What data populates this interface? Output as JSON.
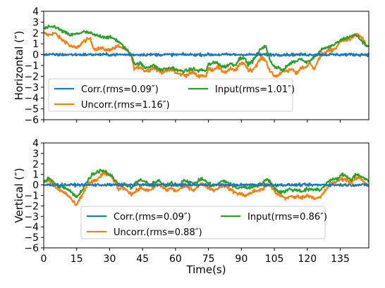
{
  "colors": {
    "corr": "#1f77b4",
    "uncorr": "#ff7f0e",
    "input": "#2ca02c"
  },
  "chart_data": [
    {
      "type": "line",
      "ylabel": "Horizontal (″)",
      "xlabel": "",
      "xlim": [
        0,
        148
      ],
      "ylim": [
        -6,
        4
      ],
      "yticks": [
        "4",
        "3",
        "2",
        "1",
        "0",
        "−1",
        "−2",
        "−3",
        "−4",
        "−5",
        "−6"
      ],
      "ytick_values": [
        4,
        3,
        2,
        1,
        0,
        -1,
        -2,
        -3,
        -4,
        -5,
        -6
      ],
      "xtick_values": [
        0,
        15,
        30,
        45,
        60,
        75,
        90,
        105,
        120,
        135
      ],
      "show_xtick_labels": false,
      "legend": {
        "placement": "lower-left",
        "entries": [
          "Corr.(rms=0.09″)",
          "Uncorr.(rms=1.16″)",
          "Input(rms=1.01″)"
        ]
      },
      "series": [
        {
          "name": "Corr.(rms=0.09″)",
          "key": "corr",
          "noise": 0.09,
          "x": [
            0,
            148
          ],
          "values": [
            0,
            0
          ]
        },
        {
          "name": "Uncorr.(rms=1.16″)",
          "key": "uncorr",
          "noise": 0.12,
          "x": [
            0,
            2,
            5,
            8,
            10,
            12,
            15,
            18,
            21,
            23,
            26,
            29,
            32,
            34,
            36,
            38,
            40,
            41,
            42,
            44,
            46,
            48,
            50,
            53,
            56,
            59,
            60,
            62,
            65,
            68,
            70,
            72,
            74,
            75,
            77,
            79,
            81,
            83,
            85,
            87,
            89,
            91,
            93,
            95,
            97,
            99,
            101,
            103,
            105,
            107,
            109,
            111,
            113,
            115,
            117,
            119,
            121,
            123,
            125,
            127,
            129,
            131,
            133,
            135,
            137,
            139,
            141,
            143,
            145,
            147
          ],
          "values": [
            2.0,
            1.8,
            2.0,
            1.4,
            1.2,
            0.8,
            0.6,
            1.2,
            1.5,
            0.5,
            0.6,
            0.4,
            0.6,
            0.8,
            0.6,
            0.3,
            -0.2,
            -1.2,
            -1.3,
            -1.1,
            -1.5,
            -1.4,
            -1.2,
            -1.6,
            -1.5,
            -1.4,
            -1.7,
            -1.8,
            -1.9,
            -1.6,
            -2.0,
            -1.9,
            -2.0,
            -1.3,
            -1.4,
            -1.1,
            -1.5,
            -1.6,
            -1.3,
            -1.5,
            -1.0,
            -0.7,
            -1.4,
            -1.4,
            -0.9,
            -0.3,
            -0.5,
            -1.5,
            -2.0,
            -1.9,
            -1.4,
            -1.6,
            -1.3,
            -1.8,
            -1.2,
            -1.2,
            -0.8,
            -1.3,
            -0.5,
            0.1,
            0.3,
            0.4,
            0.6,
            1.2,
            1.3,
            1.4,
            1.7,
            1.9,
            1.5,
            0.8
          ]
        },
        {
          "name": "Input(rms=1.01″)",
          "key": "input",
          "noise": 0.11,
          "x": [
            0,
            2,
            5,
            8,
            10,
            12,
            15,
            18,
            21,
            23,
            26,
            29,
            32,
            34,
            36,
            38,
            40,
            41,
            42,
            44,
            46,
            48,
            50,
            53,
            56,
            59,
            60,
            62,
            65,
            68,
            70,
            72,
            74,
            75,
            77,
            79,
            81,
            83,
            85,
            87,
            89,
            91,
            93,
            95,
            97,
            99,
            101,
            103,
            105,
            107,
            109,
            111,
            113,
            115,
            117,
            119,
            121,
            123,
            125,
            127,
            129,
            131,
            133,
            135,
            137,
            139,
            141,
            143,
            145,
            147
          ],
          "values": [
            2.4,
            2.5,
            2.6,
            2.2,
            2.0,
            1.8,
            1.9,
            2.1,
            2.0,
            1.8,
            1.7,
            1.6,
            1.5,
            1.2,
            0.8,
            0.4,
            0.0,
            -0.7,
            -0.9,
            -0.8,
            -1.2,
            -1.1,
            -1.0,
            -1.4,
            -1.3,
            -1.2,
            -1.4,
            -1.5,
            -1.5,
            -1.3,
            -1.5,
            -1.4,
            -1.5,
            -0.9,
            -0.8,
            -0.7,
            -1.1,
            -1.1,
            -0.8,
            -1.0,
            -0.4,
            -0.2,
            -0.9,
            -0.6,
            -0.1,
            0.6,
            0.8,
            -0.5,
            -1.1,
            -1.2,
            -1.5,
            -1.0,
            -0.7,
            -0.6,
            -0.3,
            -0.7,
            -0.6,
            -0.2,
            0.1,
            0.6,
            0.6,
            0.8,
            1.0,
            1.3,
            1.5,
            1.6,
            1.8,
            1.7,
            1.2,
            0.8
          ]
        }
      ]
    },
    {
      "type": "line",
      "ylabel": "Vertical (″)",
      "xlabel": "Time(s)",
      "xlim": [
        0,
        148
      ],
      "ylim": [
        -6,
        4
      ],
      "yticks": [
        "4",
        "3",
        "2",
        "1",
        "0",
        "−1",
        "−2",
        "−3",
        "−4",
        "−5",
        "−6"
      ],
      "ytick_values": [
        4,
        3,
        2,
        1,
        0,
        -1,
        -2,
        -3,
        -4,
        -5,
        -6
      ],
      "xticks": [
        "0",
        "15",
        "30",
        "45",
        "60",
        "75",
        "90",
        "105",
        "120",
        "135"
      ],
      "xtick_values": [
        0,
        15,
        30,
        45,
        60,
        75,
        90,
        105,
        120,
        135
      ],
      "show_xtick_labels": true,
      "legend": {
        "placement": "lower-center",
        "entries": [
          "Corr.(rms=0.09″)",
          "Uncorr.(rms=0.88″)",
          "Input(rms=0.86″)"
        ]
      },
      "series": [
        {
          "name": "Corr.(rms=0.09″)",
          "key": "corr",
          "noise": 0.09,
          "x": [
            0,
            148
          ],
          "values": [
            0,
            0
          ]
        },
        {
          "name": "Uncorr.(rms=0.88″)",
          "key": "uncorr",
          "noise": 0.13,
          "x": [
            0,
            2,
            4,
            6,
            8,
            10,
            12,
            14,
            15,
            16,
            18,
            20,
            22,
            24,
            26,
            28,
            30,
            32,
            34,
            36,
            38,
            40,
            42,
            44,
            46,
            48,
            50,
            52,
            54,
            56,
            58,
            60,
            62,
            64,
            66,
            68,
            70,
            72,
            74,
            76,
            78,
            80,
            82,
            84,
            86,
            88,
            90,
            92,
            94,
            96,
            98,
            100,
            102,
            104,
            106,
            108,
            110,
            112,
            114,
            116,
            118,
            120,
            122,
            124,
            126,
            128,
            130,
            132,
            134,
            136,
            138,
            140,
            142,
            144,
            146,
            148
          ],
          "values": [
            0.3,
            0.4,
            0.1,
            -0.4,
            -0.6,
            -0.8,
            -1.2,
            -1.8,
            -2.0,
            -1.5,
            -0.8,
            0.1,
            0.3,
            0.4,
            0.9,
            1.1,
            0.9,
            0.4,
            -0.4,
            -0.2,
            -0.5,
            -0.9,
            -0.6,
            -0.3,
            -0.4,
            -0.6,
            -0.3,
            0.1,
            -0.2,
            -0.5,
            -0.3,
            -0.6,
            -0.4,
            -0.1,
            -0.2,
            -0.5,
            -0.2,
            0.1,
            -0.1,
            -0.4,
            -0.5,
            -0.2,
            0.0,
            -0.3,
            -0.6,
            -0.8,
            -0.9,
            -1.0,
            -0.8,
            -0.6,
            -0.5,
            -0.4,
            0.2,
            -0.3,
            -0.9,
            -1.0,
            -1.3,
            -1.1,
            -1.2,
            -1.1,
            -1.2,
            -1.0,
            -1.1,
            -1.3,
            -1.2,
            -0.6,
            0.0,
            0.2,
            0.4,
            0.6,
            0.5,
            0.2,
            0.6,
            0.7,
            0.3,
            -0.1
          ]
        },
        {
          "name": "Input(rms=0.86″)",
          "key": "input",
          "noise": 0.12,
          "x": [
            0,
            2,
            4,
            6,
            8,
            10,
            12,
            14,
            15,
            16,
            18,
            20,
            22,
            24,
            26,
            28,
            30,
            32,
            34,
            36,
            38,
            40,
            42,
            44,
            46,
            48,
            50,
            52,
            54,
            56,
            58,
            60,
            62,
            64,
            66,
            68,
            70,
            72,
            74,
            76,
            78,
            80,
            82,
            84,
            86,
            88,
            90,
            92,
            94,
            96,
            98,
            100,
            102,
            104,
            106,
            108,
            110,
            112,
            114,
            116,
            118,
            120,
            122,
            124,
            126,
            128,
            130,
            132,
            134,
            136,
            138,
            140,
            142,
            144,
            146,
            148
          ],
          "values": [
            0.3,
            0.6,
            0.4,
            -0.1,
            -0.2,
            -0.3,
            -0.6,
            -1.0,
            -1.2,
            -0.9,
            -0.3,
            0.4,
            1.0,
            1.2,
            1.4,
            1.3,
            1.0,
            0.6,
            0.0,
            0.1,
            0.0,
            -0.3,
            0.2,
            0.5,
            0.3,
            0.0,
            0.2,
            0.4,
            0.1,
            -0.1,
            0.2,
            -0.1,
            0.1,
            0.5,
            0.3,
            0.1,
            0.3,
            0.6,
            0.3,
            0.0,
            -0.1,
            0.2,
            0.4,
            0.2,
            -0.1,
            -0.3,
            -0.2,
            -0.2,
            -0.3,
            -0.1,
            0.0,
            0.2,
            0.6,
            0.0,
            -0.5,
            -0.7,
            -0.6,
            -0.4,
            -0.5,
            -0.5,
            -0.6,
            -0.4,
            -0.5,
            -0.4,
            -0.5,
            0.0,
            0.4,
            0.5,
            0.6,
            1.0,
            0.8,
            0.5,
            1.0,
            0.9,
            0.6,
            0.3
          ]
        }
      ]
    }
  ]
}
